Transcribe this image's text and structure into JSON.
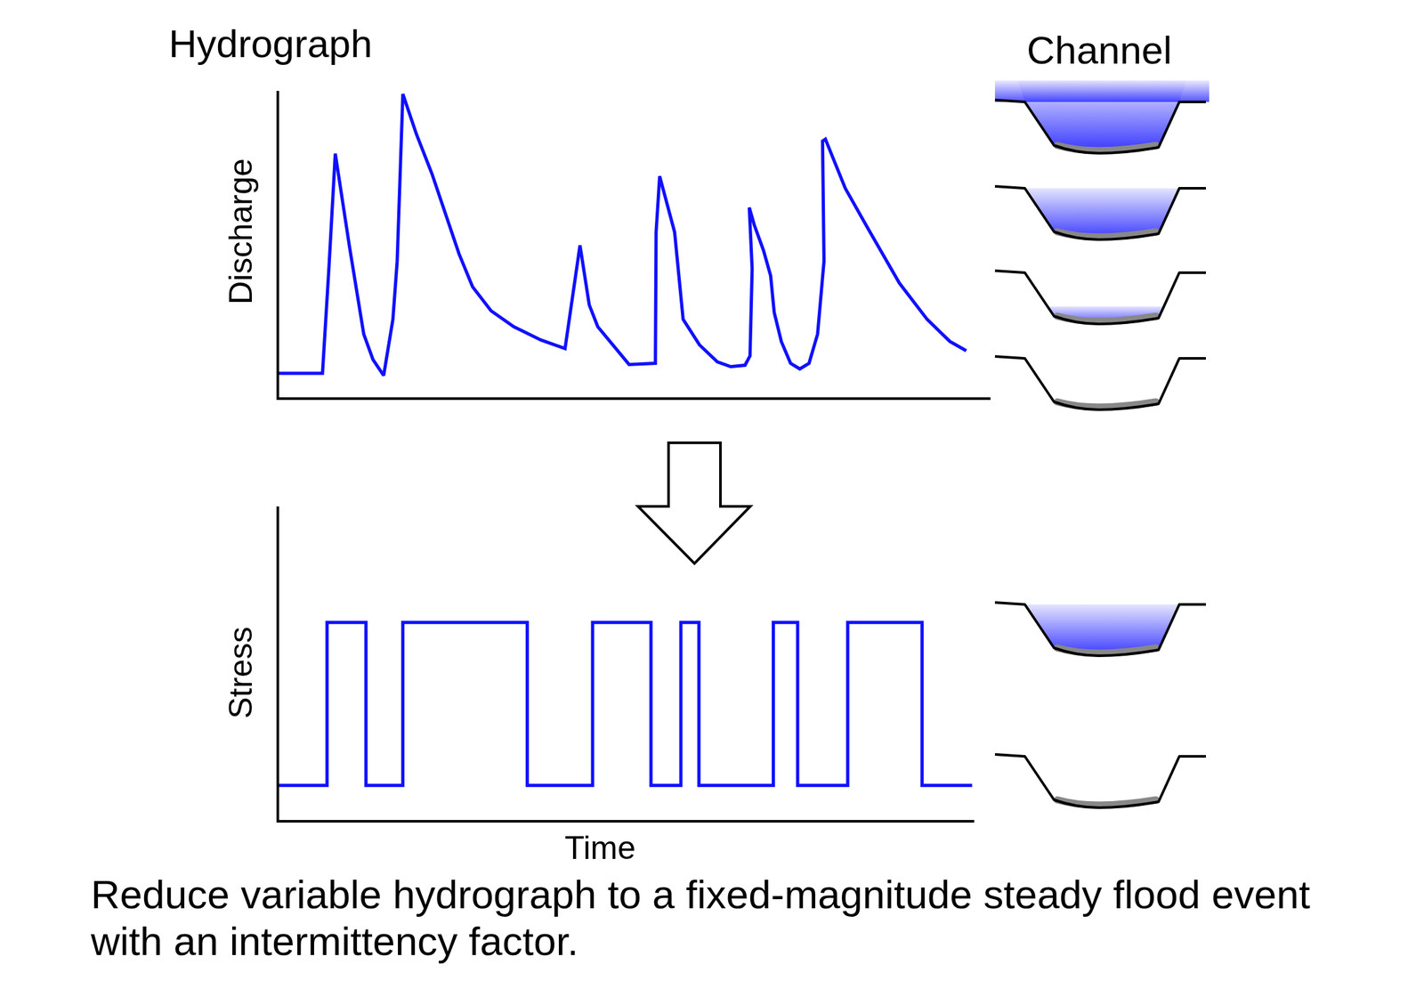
{
  "chart_data": [
    {
      "type": "line",
      "title": "Hydrograph",
      "y_label": "Discharge",
      "color": "#1010ff",
      "x": [
        0,
        6.1,
        7.0,
        7.9,
        9.9,
        11.9,
        13.2,
        14.7,
        16.0,
        16.6,
        17.4,
        19.3,
        21.5,
        23.4,
        25.3,
        27.2,
        29.8,
        33.0,
        36.8,
        40.2,
        42.3,
        43.6,
        44.8,
        49.2,
        52.9,
        53.0,
        53.5,
        55.6,
        56.8,
        59.1,
        61.6,
        63.5,
        65.5,
        66.2,
        66.5,
        66.1,
        66.8,
        68.1,
        69.1,
        69.6,
        70.6,
        71.9,
        73.2,
        74.5,
        75.7,
        76.6,
        76.4,
        76.8,
        79.6,
        82.8,
        87.2,
        91.1,
        94.3,
        96.6
      ],
      "values": [
        9.8,
        9.8,
        52.5,
        99.4,
        61.4,
        25.8,
        15.4,
        8.9,
        31.8,
        55.5,
        123.7,
        107.4,
        91.1,
        74.8,
        58.5,
        45.1,
        35.3,
        28.8,
        23.4,
        19.9,
        62.0,
        37.7,
        28.8,
        13.4,
        13.9,
        67.4,
        90.2,
        67.4,
        31.8,
        21.4,
        14.5,
        12.5,
        13.1,
        16.9,
        52.5,
        77.4,
        70.3,
        59.9,
        49.6,
        34.7,
        22.8,
        13.9,
        11.6,
        13.9,
        25.8,
        55.5,
        104.5,
        105.3,
        85.2,
        68.8,
        46.6,
        31.8,
        22.8,
        19.0
      ],
      "xlim": [
        0,
        100
      ],
      "ylim": [
        0,
        125
      ],
      "xticks": [],
      "yticks": [],
      "tick_labels": false,
      "grid": false
    },
    {
      "type": "line",
      "line_style": "step",
      "x_label": "Time",
      "y_label": "Stress",
      "color": "#1010ff",
      "x": [
        0,
        6.9,
        12.5,
        17.8,
        35.7,
        45.1,
        53.5,
        57.8,
        60.4,
        71.1,
        74.6,
        81.8,
        92.5,
        99.7
      ],
      "values": [
        11,
        63,
        11,
        63,
        11,
        63,
        11,
        63,
        11,
        63,
        11,
        63,
        11,
        11
      ],
      "xlim": [
        0,
        100
      ],
      "ylim": [
        0,
        100
      ],
      "xticks": [],
      "yticks": [],
      "tick_labels": false,
      "grid": false
    }
  ],
  "channel_label": "Channel",
  "caption": "Reduce variable hydrograph to a fixed-magnitude steady flood event with an intermittency factor."
}
